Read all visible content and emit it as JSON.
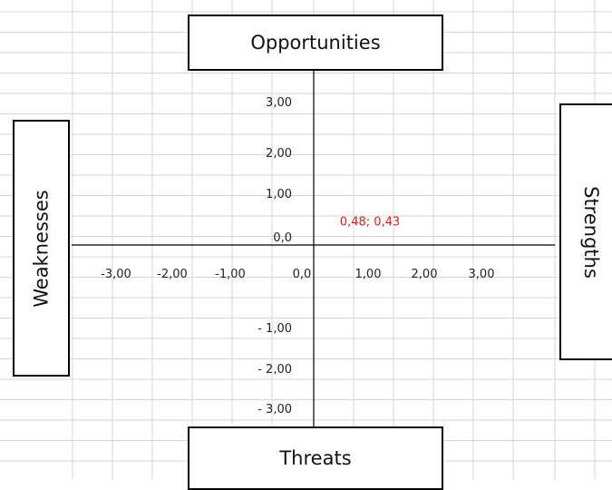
{
  "chart_data": {
    "type": "scatter",
    "quadrant_labels": {
      "top": "Opportunities",
      "bottom": "Threats",
      "left": "Weaknesses",
      "right": "Strengths"
    },
    "x_ticks": [
      {
        "value": -3,
        "label": "-3,00"
      },
      {
        "value": -2,
        "label": "-2,00"
      },
      {
        "value": -1,
        "label": "-1,00"
      },
      {
        "value": 0,
        "label": "0,0"
      },
      {
        "value": 1,
        "label": "1,00"
      },
      {
        "value": 2,
        "label": "2,00"
      },
      {
        "value": 3,
        "label": "3,00"
      }
    ],
    "y_ticks": [
      {
        "value": 3,
        "label": "3,00"
      },
      {
        "value": 2,
        "label": "2,00"
      },
      {
        "value": 1,
        "label": "1,00"
      },
      {
        "value": 0,
        "label": "0,0"
      },
      {
        "value": -1,
        "label": "- 1,00"
      },
      {
        "value": -2,
        "label": "- 2,00"
      },
      {
        "value": -3,
        "label": "- 3,00"
      }
    ],
    "points": [
      {
        "x": 0.48,
        "y": 0.43,
        "label": "0,48; 0,43"
      }
    ],
    "grid": true,
    "colors": {
      "annotation": "#d42020",
      "axis": "#000000",
      "grid": "#d4d4d4"
    }
  }
}
